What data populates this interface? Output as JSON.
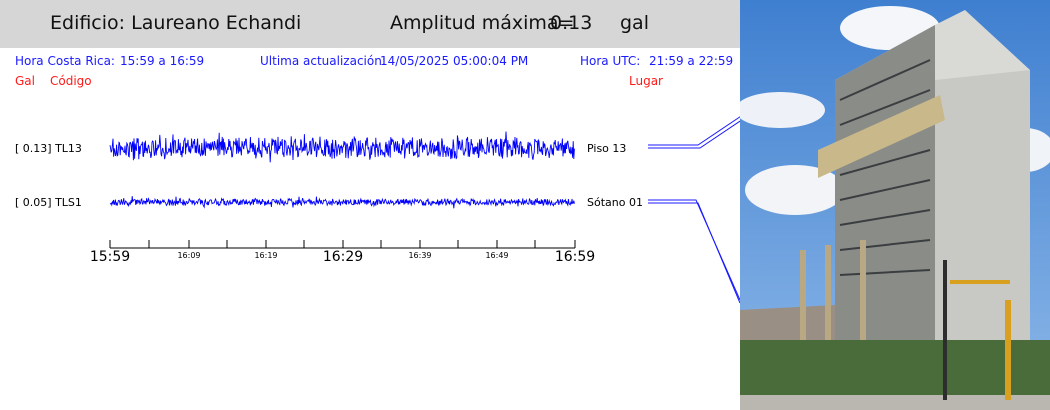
{
  "header": {
    "building": "Edificio: Laureano Echandi",
    "amp_label": "Amplitud máxima=",
    "amp_value": "0.13",
    "amp_unit": "gal"
  },
  "info": {
    "local_label": "Hora Costa Rica:",
    "local_range": "15:59 a 16:59",
    "update_label": "Ultima actualización:",
    "update_value": "14/05/2025 05:00:04 PM",
    "utc_label": "Hora UTC:",
    "utc_range": "21:59 a 22:59"
  },
  "columns": {
    "gal": "Gal",
    "code": "Código",
    "place": "Lugar"
  },
  "channels": [
    {
      "amp": "0.13",
      "code": "TL13",
      "row_label": "[  0.13] TL13",
      "place": "Piso 13"
    },
    {
      "amp": "0.05",
      "code": "TLS1",
      "row_label": "[  0.05] TLS1",
      "place": "Sótano 01"
    }
  ],
  "time_axis": {
    "major": [
      "15:59",
      "16:29",
      "16:59"
    ],
    "minor": [
      "16:09",
      "16:19",
      "16:39",
      "16:49"
    ]
  },
  "colors": {
    "trace": "#0000ff",
    "header_bg": "#d6d6d6",
    "info": "#1a1aff",
    "column_labels": "#ff1a1a"
  }
}
